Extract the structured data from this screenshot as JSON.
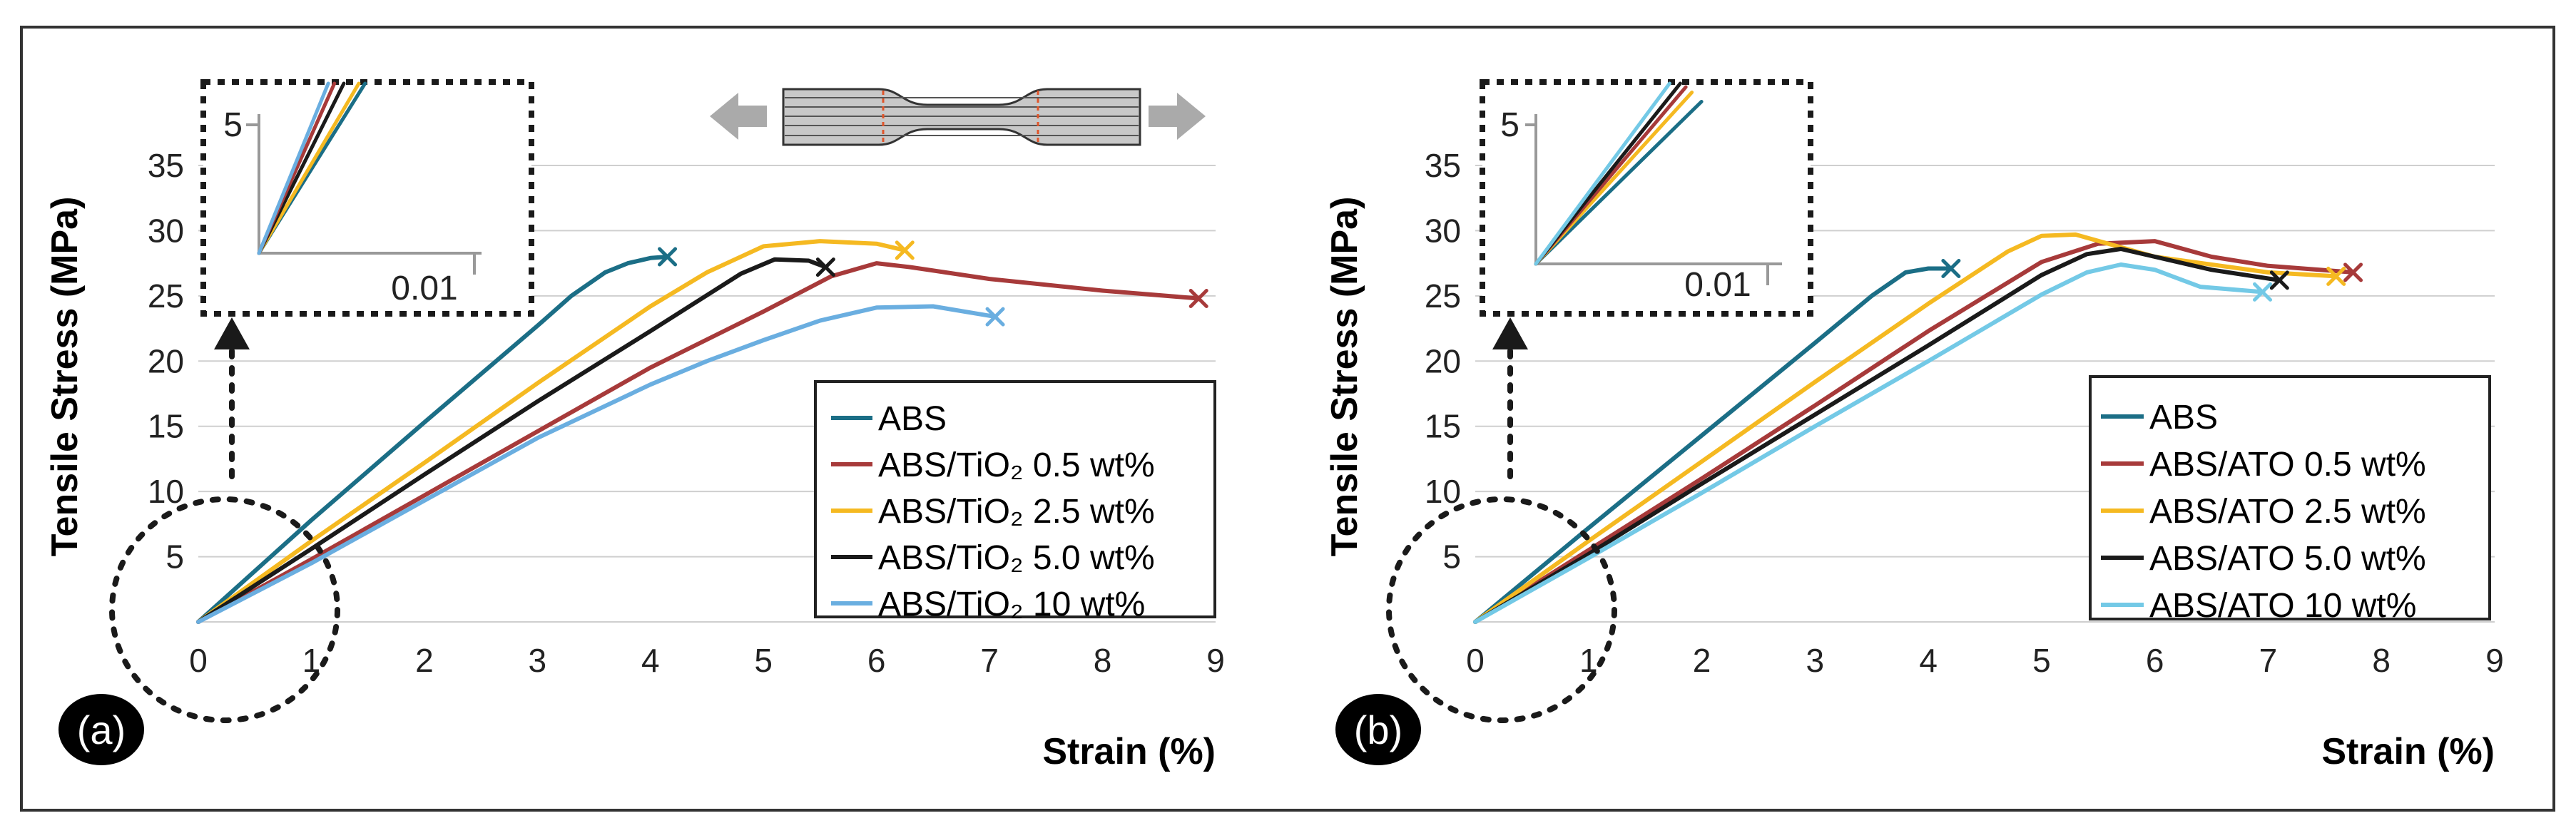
{
  "chart_data": [
    {
      "type": "line",
      "panel_label": "(a)",
      "xlabel": "Strain (%)",
      "ylabel": "Tensile Stress (MPa)",
      "xlim": [
        0,
        9
      ],
      "ylim": [
        0,
        38
      ],
      "xticks": [
        "0",
        "1",
        "2",
        "3",
        "4",
        "5",
        "6",
        "7",
        "8",
        "9"
      ],
      "yticks": [
        "5",
        "10",
        "15",
        "20",
        "25",
        "30",
        "35"
      ],
      "grid": "horizontal",
      "legend_position": "lower-right",
      "series": [
        {
          "name": "ABS",
          "color": "#1b6e86",
          "break_marker": "x",
          "x": [
            0,
            1,
            2,
            3,
            3.3,
            3.6,
            3.8,
            4.0,
            4.15
          ],
          "y": [
            0,
            7.8,
            15.3,
            22.7,
            25,
            26.8,
            27.5,
            27.9,
            28
          ]
        },
        {
          "name": "ABS/TiO₂ 0.5 wt%",
          "color": "#a73a3a",
          "break_marker": "x",
          "x": [
            0,
            1,
            2,
            3,
            4,
            5,
            5.6,
            6.0,
            6.3,
            7.0,
            8.0,
            8.85
          ],
          "y": [
            0,
            4.8,
            9.7,
            14.6,
            19.5,
            23.8,
            26.5,
            27.5,
            27.2,
            26.3,
            25.4,
            24.8
          ]
        },
        {
          "name": "ABS/TiO₂ 2.5 wt%",
          "color": "#f5b921",
          "break_marker": "x",
          "x": [
            0,
            1,
            2,
            3,
            4,
            4.5,
            5.0,
            5.5,
            6.0,
            6.25
          ],
          "y": [
            0,
            6.2,
            12.2,
            18.3,
            24.2,
            26.8,
            28.8,
            29.2,
            29.0,
            28.5
          ]
        },
        {
          "name": "ABS/TiO₂ 5.0 wt%",
          "color": "#1a1a1a",
          "break_marker": "x",
          "x": [
            0,
            1,
            2,
            3,
            4,
            4.8,
            5.1,
            5.4,
            5.55
          ],
          "y": [
            0,
            5.6,
            11.3,
            16.9,
            22.3,
            26.7,
            27.8,
            27.7,
            27.2
          ]
        },
        {
          "name": "ABS/TiO₂ 10 wt%",
          "color": "#6aaee0",
          "break_marker": "x",
          "x": [
            0,
            1,
            2,
            3,
            4,
            4.5,
            5.0,
            5.5,
            6.0,
            6.5,
            7.05
          ],
          "y": [
            0,
            4.5,
            9.3,
            14.1,
            18.2,
            20.0,
            21.6,
            23.1,
            24.1,
            24.2,
            23.4
          ]
        }
      ],
      "inset": {
        "ytick": "5",
        "xtick": "0.01"
      }
    },
    {
      "type": "line",
      "panel_label": "(b)",
      "xlabel": "Strain (%)",
      "ylabel": "Tensile Stress (MPa)",
      "xlim": [
        0,
        9
      ],
      "ylim": [
        0,
        38
      ],
      "xticks": [
        "0",
        "1",
        "2",
        "3",
        "4",
        "5",
        "6",
        "7",
        "8",
        "9"
      ],
      "yticks": [
        "5",
        "10",
        "15",
        "20",
        "25",
        "30",
        "35"
      ],
      "grid": "horizontal",
      "legend_position": "lower-right",
      "series": [
        {
          "name": "ABS",
          "color": "#1b6e86",
          "break_marker": "x",
          "x": [
            0,
            1,
            2,
            3,
            3.5,
            3.8,
            4.0,
            4.2
          ],
          "y": [
            0,
            7.2,
            14.3,
            21.4,
            25.0,
            26.8,
            27.1,
            27.1
          ]
        },
        {
          "name": "ABS/ATO 0.5 wt%",
          "color": "#a73a3a",
          "break_marker": "x",
          "x": [
            0,
            1,
            2,
            3,
            4,
            5,
            5.5,
            6.0,
            6.5,
            7.0,
            7.75
          ],
          "y": [
            0,
            5.5,
            11.0,
            16.6,
            22.3,
            27.6,
            29.0,
            29.2,
            28.0,
            27.3,
            26.8
          ]
        },
        {
          "name": "ABS/ATO 2.5 wt%",
          "color": "#f5b921",
          "break_marker": "x",
          "x": [
            0,
            1,
            2,
            3,
            4,
            4.7,
            5.0,
            5.3,
            6.0,
            7.0,
            7.6
          ],
          "y": [
            0,
            6.2,
            12.3,
            18.4,
            24.4,
            28.4,
            29.6,
            29.7,
            28.0,
            26.8,
            26.5
          ]
        },
        {
          "name": "ABS/ATO 5.0 wt%",
          "color": "#1a1a1a",
          "break_marker": "x",
          "x": [
            0,
            1,
            2,
            3,
            4,
            5,
            5.4,
            5.7,
            6.0,
            6.5,
            7.1
          ],
          "y": [
            0,
            5.2,
            10.6,
            15.9,
            21.2,
            26.6,
            28.2,
            28.6,
            28.0,
            27.0,
            26.2
          ]
        },
        {
          "name": "ABS/ATO 10 wt%",
          "color": "#73c9e6",
          "break_marker": "x",
          "x": [
            0,
            1,
            2,
            3,
            4,
            5,
            5.4,
            5.7,
            6.0,
            6.4,
            6.95
          ],
          "y": [
            0,
            4.9,
            9.9,
            15.0,
            20.0,
            25.1,
            26.8,
            27.4,
            27.0,
            25.7,
            25.3
          ]
        }
      ],
      "inset": {
        "ytick": "5",
        "xtick": "0.01"
      }
    }
  ]
}
